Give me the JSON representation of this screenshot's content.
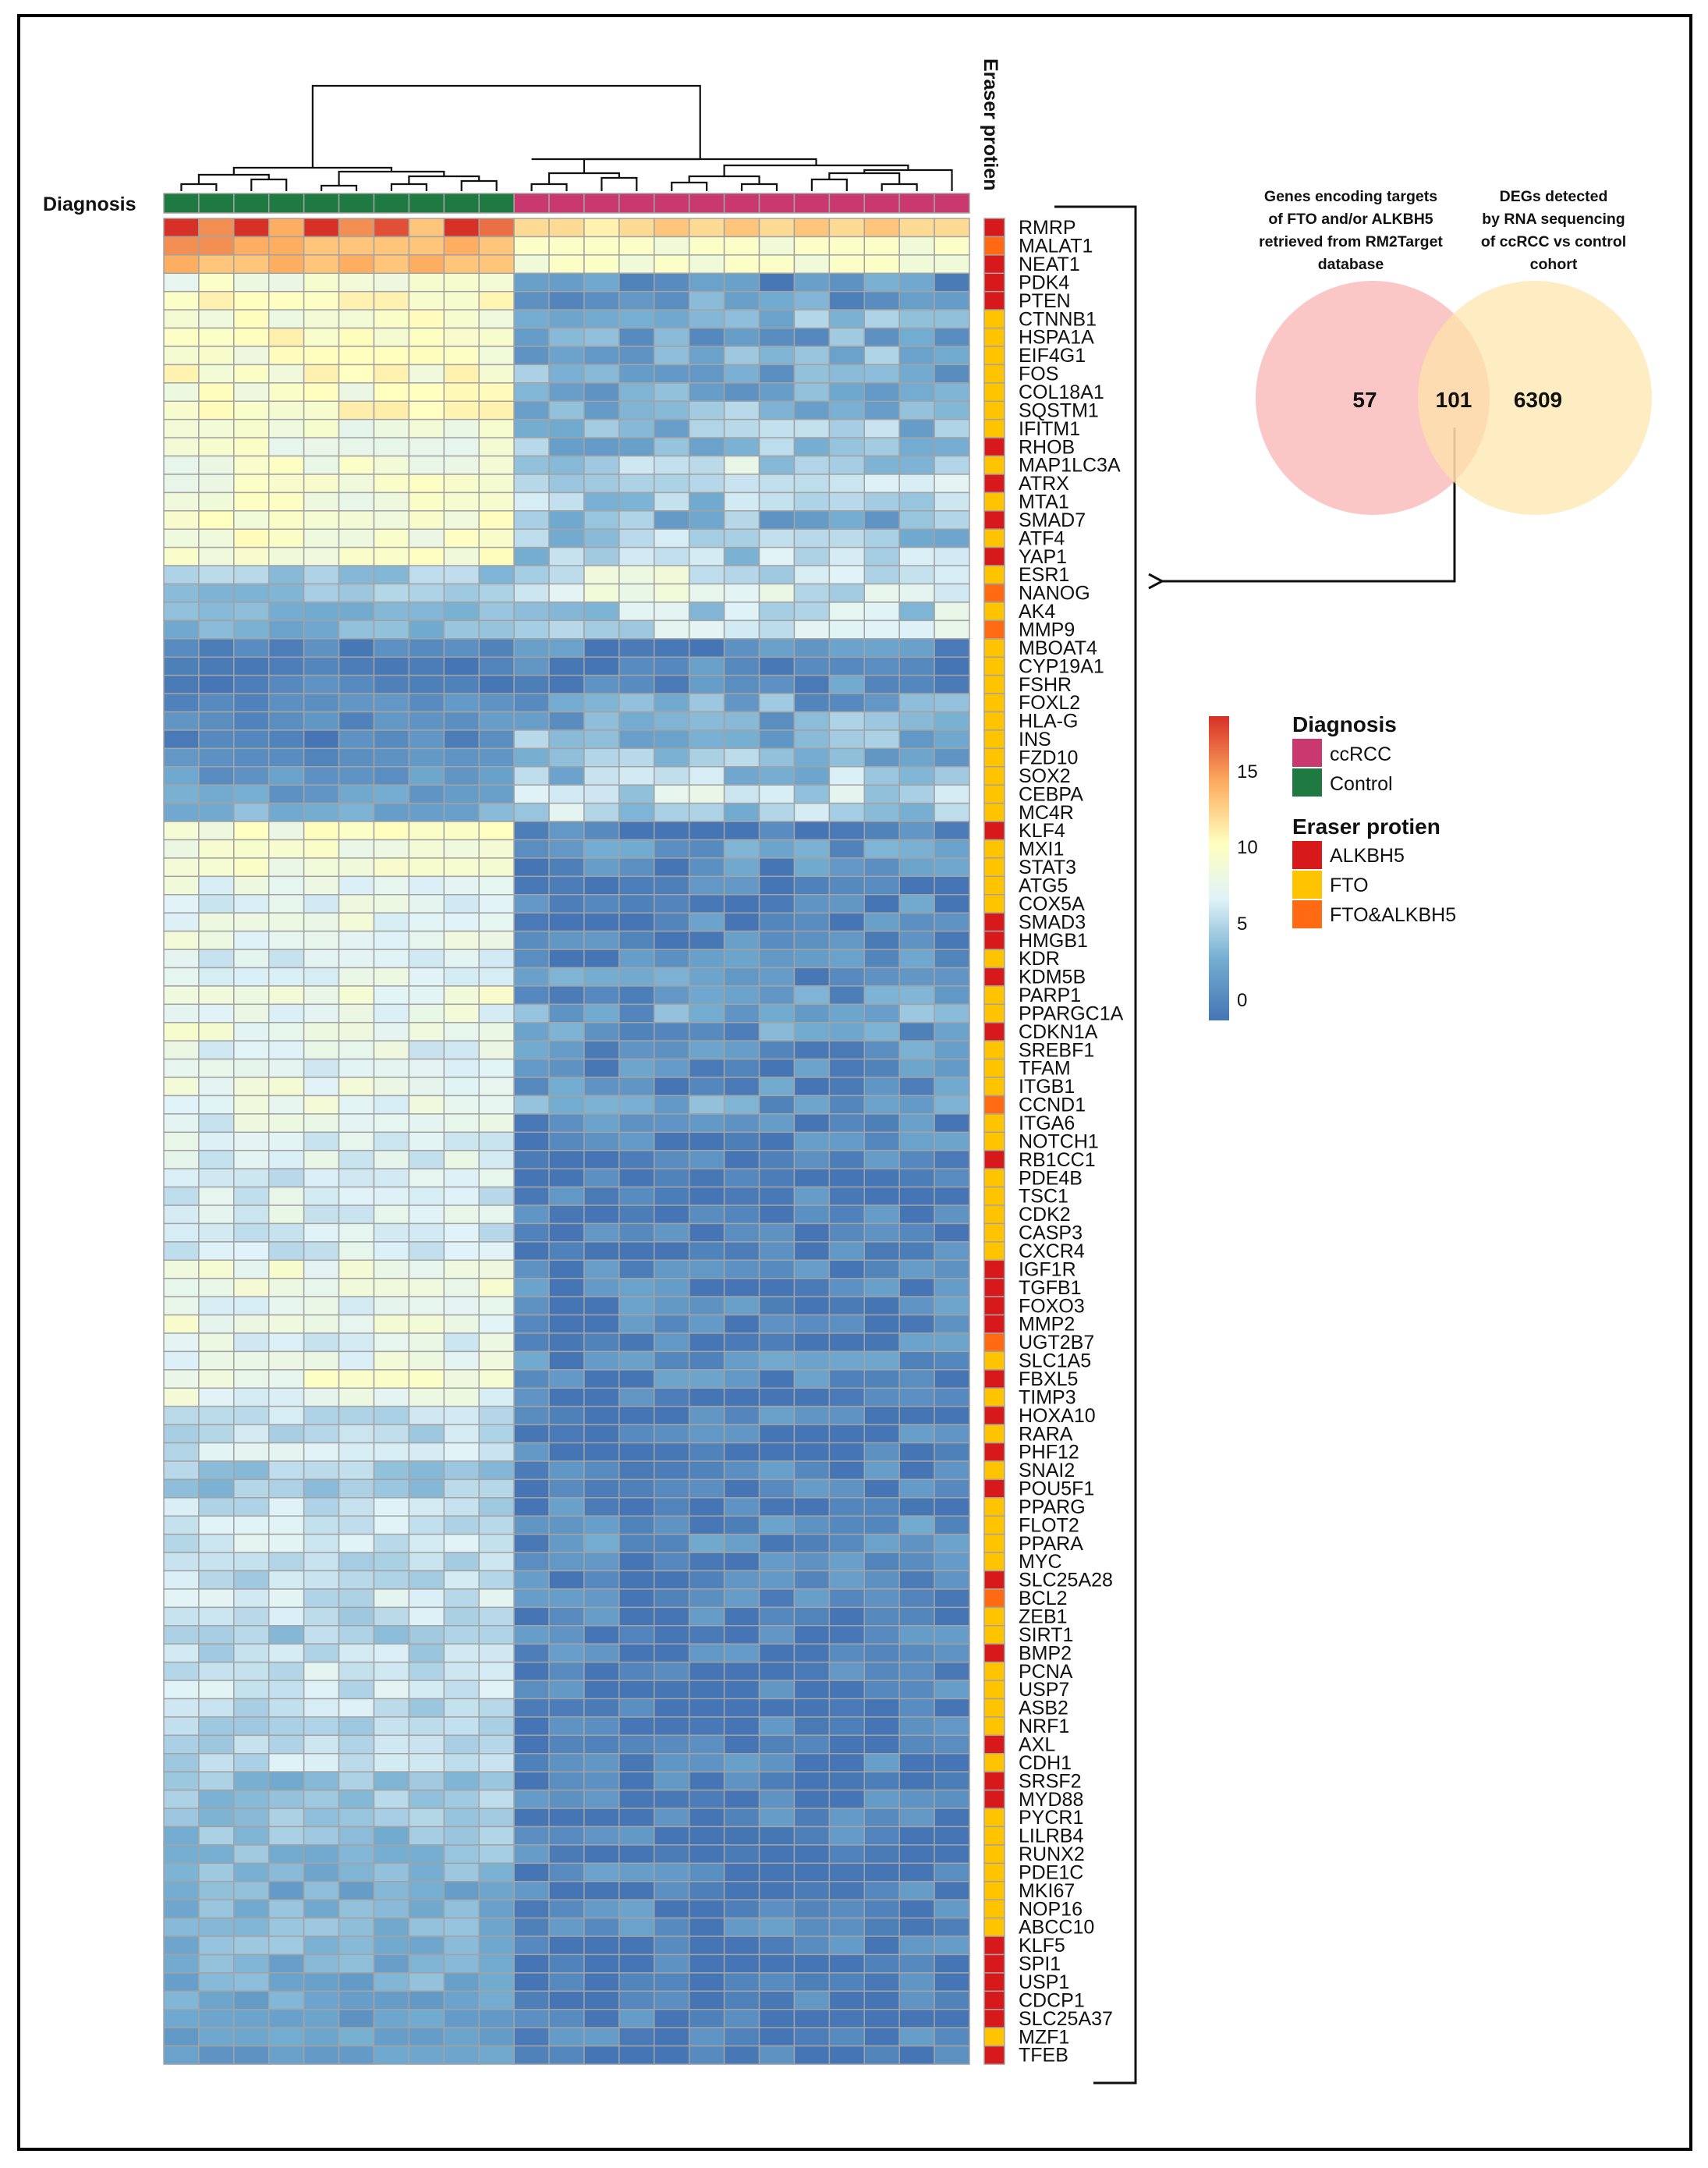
{
  "chart_data": [
    {
      "type": "heatmap",
      "title": "",
      "column_annotation_label": "Diagnosis",
      "row_annotation_label": "Eraser protien",
      "columns": {
        "n": 23,
        "diagnosis": [
          "Control",
          "Control",
          "Control",
          "Control",
          "Control",
          "Control",
          "Control",
          "Control",
          "Control",
          "Control",
          "ccRCC",
          "ccRCC",
          "ccRCC",
          "ccRCC",
          "ccRCC",
          "ccRCC",
          "ccRCC",
          "ccRCC",
          "ccRCC",
          "ccRCC",
          "ccRCC",
          "ccRCC",
          "ccRCC"
        ]
      },
      "genes": [
        "RMRP",
        "MALAT1",
        "NEAT1",
        "PDK4",
        "PTEN",
        "CTNNB1",
        "HSPA1A",
        "EIF4G1",
        "FOS",
        "COL18A1",
        "SQSTM1",
        "IFITM1",
        "RHOB",
        "MAP1LC3A",
        "ATRX",
        "MTA1",
        "SMAD7",
        "ATF4",
        "YAP1",
        "ESR1",
        "NANOG",
        "AK4",
        "MMP9",
        "MBOAT4",
        "CYP19A1",
        "FSHR",
        "FOXL2",
        "HLA-G",
        "INS",
        "FZD10",
        "SOX2",
        "CEBPA",
        "MC4R",
        "KLF4",
        "MXI1",
        "STAT3",
        "ATG5",
        "COX5A",
        "SMAD3",
        "HMGB1",
        "KDR",
        "KDM5B",
        "PARP1",
        "PPARGC1A",
        "CDKN1A",
        "SREBF1",
        "TFAM",
        "ITGB1",
        "CCND1",
        "ITGA6",
        "NOTCH1",
        "RB1CC1",
        "PDE4B",
        "TSC1",
        "CDK2",
        "CASP3",
        "CXCR4",
        "IGF1R",
        "TGFB1",
        "FOXO3",
        "MMP2",
        "UGT2B7",
        "SLC1A5",
        "FBXL5",
        "TIMP3",
        "HOXA10",
        "RARA",
        "PHF12",
        "SNAI2",
        "POU5F1",
        "PPARG",
        "FLOT2",
        "PPARA",
        "MYC",
        "SLC25A28",
        "BCL2",
        "ZEB1",
        "SIRT1",
        "BMP2",
        "PCNA",
        "USP7",
        "ASB2",
        "NRF1",
        "AXL",
        "CDH1",
        "SRSF2",
        "MYD88",
        "PYCR1",
        "LILRB4",
        "RUNX2",
        "PDE1C",
        "MKI67",
        "NOP16",
        "ABCC10",
        "KLF5",
        "SPI1",
        "USP1",
        "CDCP1",
        "SLC25A37",
        "MZF1",
        "TFEB"
      ],
      "eraser_protein": [
        "ALKBH5",
        "FTO&ALKBH5",
        "ALKBH5",
        "ALKBH5",
        "ALKBH5",
        "FTO",
        "FTO",
        "FTO",
        "FTO",
        "FTO",
        "FTO",
        "FTO",
        "ALKBH5",
        "FTO",
        "ALKBH5",
        "FTO",
        "ALKBH5",
        "FTO",
        "ALKBH5",
        "FTO",
        "FTO&ALKBH5",
        "FTO",
        "FTO&ALKBH5",
        "FTO",
        "FTO",
        "FTO",
        "FTO",
        "FTO",
        "FTO",
        "FTO",
        "FTO",
        "FTO",
        "FTO",
        "ALKBH5",
        "FTO",
        "FTO",
        "FTO",
        "FTO",
        "ALKBH5",
        "ALKBH5",
        "FTO",
        "ALKBH5",
        "FTO",
        "FTO",
        "ALKBH5",
        "FTO",
        "FTO",
        "FTO",
        "FTO&ALKBH5",
        "FTO",
        "FTO",
        "ALKBH5",
        "FTO",
        "FTO",
        "FTO",
        "FTO",
        "FTO",
        "ALKBH5",
        "ALKBH5",
        "ALKBH5",
        "ALKBH5",
        "FTO&ALKBH5",
        "FTO",
        "ALKBH5",
        "FTO",
        "ALKBH5",
        "FTO",
        "ALKBH5",
        "FTO",
        "ALKBH5",
        "FTO",
        "FTO",
        "FTO",
        "FTO",
        "ALKBH5",
        "FTO&ALKBH5",
        "FTO",
        "FTO",
        "ALKBH5",
        "FTO",
        "FTO",
        "FTO",
        "FTO",
        "ALKBH5",
        "FTO",
        "ALKBH5",
        "ALKBH5",
        "FTO",
        "FTO",
        "FTO",
        "FTO",
        "FTO",
        "FTO",
        "FTO",
        "ALKBH5",
        "ALKBH5",
        "ALKBH5",
        "ALKBH5",
        "ALKBH5",
        "FTO",
        "ALKBH5"
      ],
      "values_note": "per-cell expression estimated visually (0-18); only top rows listed explicitly, remaining rows as control/ccRCC means",
      "values_top": [
        [
          18,
          15,
          18,
          14,
          18,
          15,
          17,
          13,
          18,
          16,
          12,
          12,
          11,
          12,
          13,
          12,
          13,
          12,
          13,
          12,
          13,
          12,
          12
        ],
        [
          15,
          15,
          14,
          14,
          13,
          13,
          13,
          13,
          14,
          13,
          10,
          10,
          10,
          10,
          9,
          10,
          10,
          9,
          10,
          10,
          10,
          9,
          10
        ],
        [
          14,
          13,
          13,
          14,
          13,
          14,
          13,
          14,
          13,
          13,
          9,
          10,
          10,
          9,
          10,
          9,
          10,
          10,
          9,
          10,
          10,
          9,
          9
        ]
      ],
      "row_means": [
        [
          15.5,
          12.5
        ],
        [
          14,
          9.8
        ],
        [
          13.4,
          9.5
        ],
        [
          9,
          2
        ],
        [
          10,
          2.5
        ],
        [
          9.5,
          4
        ],
        [
          10,
          3
        ],
        [
          9.5,
          4
        ],
        [
          10,
          3.5
        ],
        [
          9.5,
          3
        ],
        [
          10,
          4
        ],
        [
          9,
          4.5
        ],
        [
          9,
          4
        ],
        [
          9,
          6
        ],
        [
          9,
          5.5
        ],
        [
          9,
          5
        ],
        [
          9.5,
          4
        ],
        [
          9.5,
          5
        ],
        [
          9.5,
          5.5
        ],
        [
          5,
          7
        ],
        [
          5,
          7
        ],
        [
          4.5,
          6
        ],
        [
          4,
          6
        ],
        [
          1,
          1.5
        ],
        [
          0.5,
          1
        ],
        [
          1,
          2
        ],
        [
          1.5,
          3
        ],
        [
          1.5,
          3.5
        ],
        [
          1,
          4
        ],
        [
          2,
          4
        ],
        [
          2.5,
          5
        ],
        [
          3,
          6
        ],
        [
          3.5,
          5.5
        ],
        [
          9.5,
          1.5
        ],
        [
          9,
          2
        ],
        [
          9,
          1.5
        ],
        [
          8,
          1
        ],
        [
          7.5,
          1.5
        ],
        [
          8,
          1
        ],
        [
          8,
          0.8
        ],
        [
          7.5,
          1.5
        ],
        [
          8,
          2
        ],
        [
          8.5,
          2.5
        ],
        [
          8,
          3
        ],
        [
          8.5,
          2.5
        ],
        [
          7.5,
          2
        ],
        [
          7,
          1.5
        ],
        [
          8.5,
          1.5
        ],
        [
          8,
          3
        ],
        [
          7.5,
          1
        ],
        [
          7.5,
          1
        ],
        [
          7,
          0.5
        ],
        [
          7,
          0.5
        ],
        [
          7,
          0.5
        ],
        [
          7,
          0.5
        ],
        [
          6.5,
          0.5
        ],
        [
          7,
          0.5
        ],
        [
          8.5,
          1
        ],
        [
          8.5,
          1
        ],
        [
          8,
          1
        ],
        [
          8.5,
          0.8
        ],
        [
          7.5,
          1
        ],
        [
          8,
          1.5
        ],
        [
          9,
          1
        ],
        [
          8,
          0.8
        ],
        [
          6.5,
          1
        ],
        [
          6,
          1
        ],
        [
          6.5,
          0.8
        ],
        [
          5,
          1.5
        ],
        [
          5,
          0.5
        ],
        [
          6,
          1
        ],
        [
          6.5,
          1.5
        ],
        [
          6.5,
          1.5
        ],
        [
          6,
          1
        ],
        [
          6,
          1
        ],
        [
          6.5,
          1
        ],
        [
          6,
          1
        ],
        [
          5,
          0.5
        ],
        [
          6,
          0.8
        ],
        [
          6.5,
          0.5
        ],
        [
          6.5,
          0.8
        ],
        [
          6,
          0.5
        ],
        [
          5.5,
          0.5
        ],
        [
          5.5,
          0.5
        ],
        [
          6,
          1
        ],
        [
          4.5,
          0.5
        ],
        [
          5,
          0.8
        ],
        [
          5,
          0.5
        ],
        [
          4.5,
          1
        ],
        [
          4.5,
          0.5
        ],
        [
          4,
          1
        ],
        [
          3.5,
          1
        ],
        [
          4,
          1
        ],
        [
          4,
          1
        ],
        [
          4,
          0.5
        ],
        [
          3.5,
          0.5
        ],
        [
          3.5,
          0.5
        ],
        [
          3.5,
          0.5
        ],
        [
          3,
          0.5
        ],
        [
          3,
          0.5
        ],
        [
          3,
          0.5
        ]
      ],
      "color_scale": {
        "min": 0,
        "max": 18,
        "ticks": [
          0,
          5,
          10,
          15
        ],
        "colors": [
          "#4575b4",
          "#74add1",
          "#e0f3f8",
          "#ffffbf",
          "#fdae61",
          "#d73027"
        ]
      },
      "annotation_colors": {
        "ccRCC": "#c9396f",
        "Control": "#1e7a40",
        "ALKBH5": "#d7191c",
        "FTO": "#ffc300",
        "FTO&ALKBH5": "#ff6a13"
      }
    },
    {
      "type": "venn",
      "sets": [
        {
          "label": "Genes encoding targets of FTO and/or ALKBH5 retrieved from RM2Target database",
          "only": 57,
          "color": "#f9a8a8"
        },
        {
          "label": "DEGs detected by RNA sequencing of ccRCC vs control cohort",
          "only": 6309,
          "color": "#fde6a8"
        }
      ],
      "intersection": 101
    }
  ],
  "heatmap_labels": {
    "diagnosis": "Diagnosis",
    "eraser": "Eraser protien"
  },
  "venn_labels": {
    "left_title_lines": [
      "Genes encoding targets",
      "of FTO and/or ALKBH5",
      "retrieved from RM2Target",
      "database"
    ],
    "right_title_lines": [
      "DEGs detected",
      "by RNA sequencing",
      "of ccRCC vs control",
      "cohort"
    ],
    "left_only": "57",
    "intersection": "101",
    "right_only": "6309"
  },
  "legend": {
    "colorbar_ticks": [
      "15",
      "10",
      "5",
      "0"
    ],
    "diagnosis_title": "Diagnosis",
    "diagnosis_items": [
      "ccRCC",
      "Control"
    ],
    "eraser_title": "Eraser protien",
    "eraser_items": [
      "ALKBH5",
      "FTO",
      "FTO&ALKBH5"
    ]
  }
}
